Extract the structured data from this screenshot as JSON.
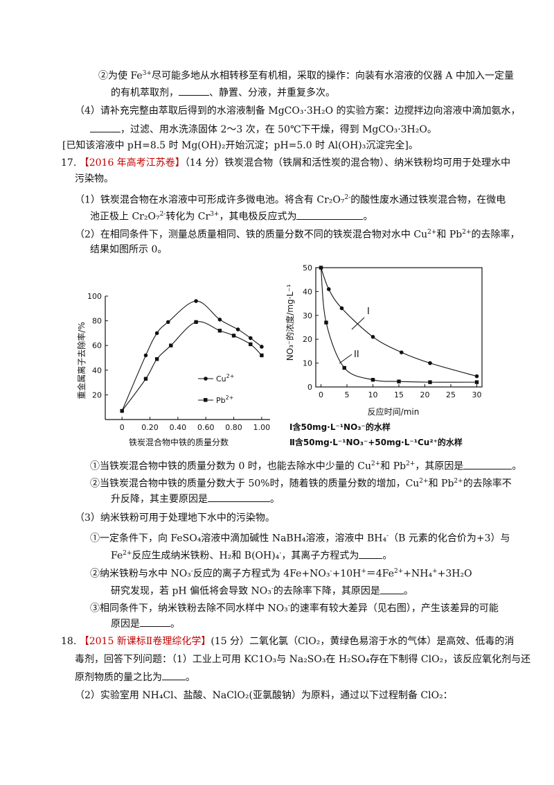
{
  "lines": {
    "l1a": "②为使 Fe",
    "l1sup": "3+",
    "l1b": "尽可能多地从水相转移至有机相，采取的操作：向装有水溶液的仪器 A 中加入一定量",
    "l2a": "的有机萃取剂，",
    "l2b": "、静置、分液，并重复多次。",
    "l3": "（4）请补充完整由萃取后得到的水溶液制备 MgCO₃·3H₂O 的实验方案：边搅拌边向溶液中滴加氨水，",
    "l4a": "，过滤、用水洗涤固体 2～3 次，在 50℃下干燥，得到 MgCO₃·3H₂O。",
    "l5": "[已知该溶液中 pH=8.5 时 Mg(OH)₂开始沉淀；pH=5.0 时 Al(OH)₃沉淀完全]。",
    "q17num": "17.",
    "q17src": "【2016 年高考江苏卷】",
    "q17a": "（14 分）铁炭混合物（铁屑和活性炭的混合物）、纳米铁粉均可用于处理水中",
    "q17b": "污染物。",
    "p1a": "（1）铁炭混合物在水溶液中可形成许多微电池。将含有 Cr₂O₇",
    "p1sup": "2-",
    "p1b": "的酸性废水通过铁炭混合物，在微电",
    "p1c": "池正极上 Cr₂O₇",
    "p1csup": "2-",
    "p1d": "转化为 Cr",
    "p1dsup": "3+",
    "p1e": "，其电极反应式为",
    "p1f": "。",
    "p2a": "（2）在相同条件下，测量总质量相同、铁的质量分数不同的铁炭混合物对水中 Cu",
    "p2sup1": "2+",
    "p2b": "和 Pb",
    "p2sup2": "2+",
    "p2c": "的去除率，",
    "p2d": "结果如图所示 0。",
    "q1a": "①当铁炭混合物中铁的质量分数为 0 时，也能去除水中少量的 Cu",
    "q1sup1": "2+",
    "q1b": "和 Pb",
    "q1sup2": "2+",
    "q1c": "，其原因是",
    "q1d": "。",
    "q2a": "②当铁炭混合物中铁的质量分数大于 50%时，随着铁的质量分数的增加，Cu",
    "q2sup1": "2+",
    "q2b": "和 Pb",
    "q2sup2": "2+",
    "q2c": "的去除率不",
    "q2d": "升反降，其主要原因是",
    "q2e": "。",
    "p3": "（3）纳米铁粉可用于处理地下水中的污染物。",
    "r1a": "①一定条件下，向 FeSO₄溶液中滴加碱性 NaBH₄溶液，溶液中 BH₄",
    "r1sup": "-",
    "r1b": "（B 元素的化合价为+3）与",
    "r2a": "Fe",
    "r2sup": "2+",
    "r2b": "反应生成纳米铁粉、H₂和 B(OH)₄",
    "r2sup2": "-",
    "r2c": "，其离子方程式为",
    "r2d": "。",
    "r3a": "②纳米铁粉与水中 NO₃",
    "r3sup": "-",
    "r3b": "反应的离子方程式为 4Fe+NO₃",
    "r3sup2": "-",
    "r3c": "+10H",
    "r3sup3": "+",
    "r3d": "＝4Fe",
    "r3sup4": "2+",
    "r3e": "+NH₄",
    "r3sup5": "+",
    "r3f": "+3H₂O",
    "r4a": "研究发现，若 pH 偏低将会导致 NO₃",
    "r4sup": "-",
    "r4b": "的去除率下降，其原因是",
    "r4c": "。",
    "r5a": "③相同条件下，纳米铁粉去除不同水样中 NO₃",
    "r5sup": "-",
    "r5b": "的速率有较大差异（见右图），产生该差异的可能",
    "r6a": "原因是",
    "r6b": "。",
    "q18num": "18.",
    "q18src": "【2015 新课标Ⅱ卷理综化学】",
    "q18a": "(15 分）二氧化氯（ClO₂，黄绿色易溶于水的气体）是高效、低毒的消",
    "q18b": "毒剂，回答下列问题：（1）工业上可用 KC1O₃与 Na₂SO₃在 H₂SO₄存在下制得 ClO₂，该反应氧化剂与还",
    "q18c": "原剂物质的量之比为",
    "q18d": "。",
    "q18e": "（2）实验室用 NH₄Cl、盐酸、NaClO₂(亚氯酸钠）为原料，通过以下过程制备 ClO₂："
  },
  "chart_data": [
    {
      "type": "line",
      "xlabel": "铁炭混合物中铁的质量分数",
      "ylabel": "重金属离子去除率/%",
      "x_ticks": [
        "0",
        "0.20",
        "0.40",
        "0.60",
        "0.80",
        "1.00"
      ],
      "y_ticks": [
        "20",
        "40",
        "60",
        "80",
        "100"
      ],
      "xlim": [
        0,
        1.0
      ],
      "ylim": [
        0,
        100
      ],
      "legend": {
        "cu_prefix": "Cu",
        "cu_sup": "2+",
        "pb_prefix": "Pb",
        "pb_sup": "2+"
      },
      "series": [
        {
          "name": "Cu2+",
          "marker": "circle",
          "points": [
            [
              0,
              7
            ],
            [
              0.17,
              52
            ],
            [
              0.25,
              70
            ],
            [
              0.33,
              79
            ],
            [
              0.53,
              96
            ],
            [
              0.7,
              81
            ],
            [
              0.83,
              73
            ],
            [
              0.92,
              66
            ],
            [
              1.0,
              59
            ]
          ]
        },
        {
          "name": "Pb2+",
          "marker": "square",
          "points": [
            [
              0,
              7
            ],
            [
              0.17,
              33
            ],
            [
              0.25,
              49
            ],
            [
              0.35,
              60
            ],
            [
              0.53,
              79
            ],
            [
              0.7,
              72
            ],
            [
              0.8,
              68
            ],
            [
              0.92,
              61
            ],
            [
              1.0,
              52
            ]
          ]
        }
      ]
    },
    {
      "type": "line",
      "xlabel": "反应时间/min",
      "ylabel": "NO₃⁻的浓度/mg·L⁻¹",
      "x_ticks": [
        "0",
        "5",
        "10",
        "15",
        "20",
        "25",
        "30"
      ],
      "y_ticks": [
        "0",
        "10",
        "20",
        "30",
        "40",
        "50"
      ],
      "xlim": [
        -1,
        31
      ],
      "ylim": [
        0,
        50
      ],
      "curve_labels": [
        "I",
        "II"
      ],
      "series": [
        {
          "name": "I",
          "marker": "circle",
          "points": [
            [
              0,
              50
            ],
            [
              1.5,
              41
            ],
            [
              4,
              33
            ],
            [
              10,
              21
            ],
            [
              15.5,
              14.5
            ],
            [
              21,
              10
            ],
            [
              30,
              4.5
            ]
          ]
        },
        {
          "name": "II",
          "marker": "square",
          "points": [
            [
              0,
              50
            ],
            [
              1,
              27
            ],
            [
              4.5,
              8
            ],
            [
              10,
              3
            ],
            [
              15,
              2.3
            ],
            [
              21,
              2
            ],
            [
              30,
              2
            ]
          ]
        }
      ],
      "notes": [
        "Ⅰ含50mg·L⁻¹NO₃⁻的水样",
        "Ⅱ含50mg·L⁻¹NO₃⁻+50mg·L⁻¹Cu²⁺的水样"
      ]
    }
  ]
}
